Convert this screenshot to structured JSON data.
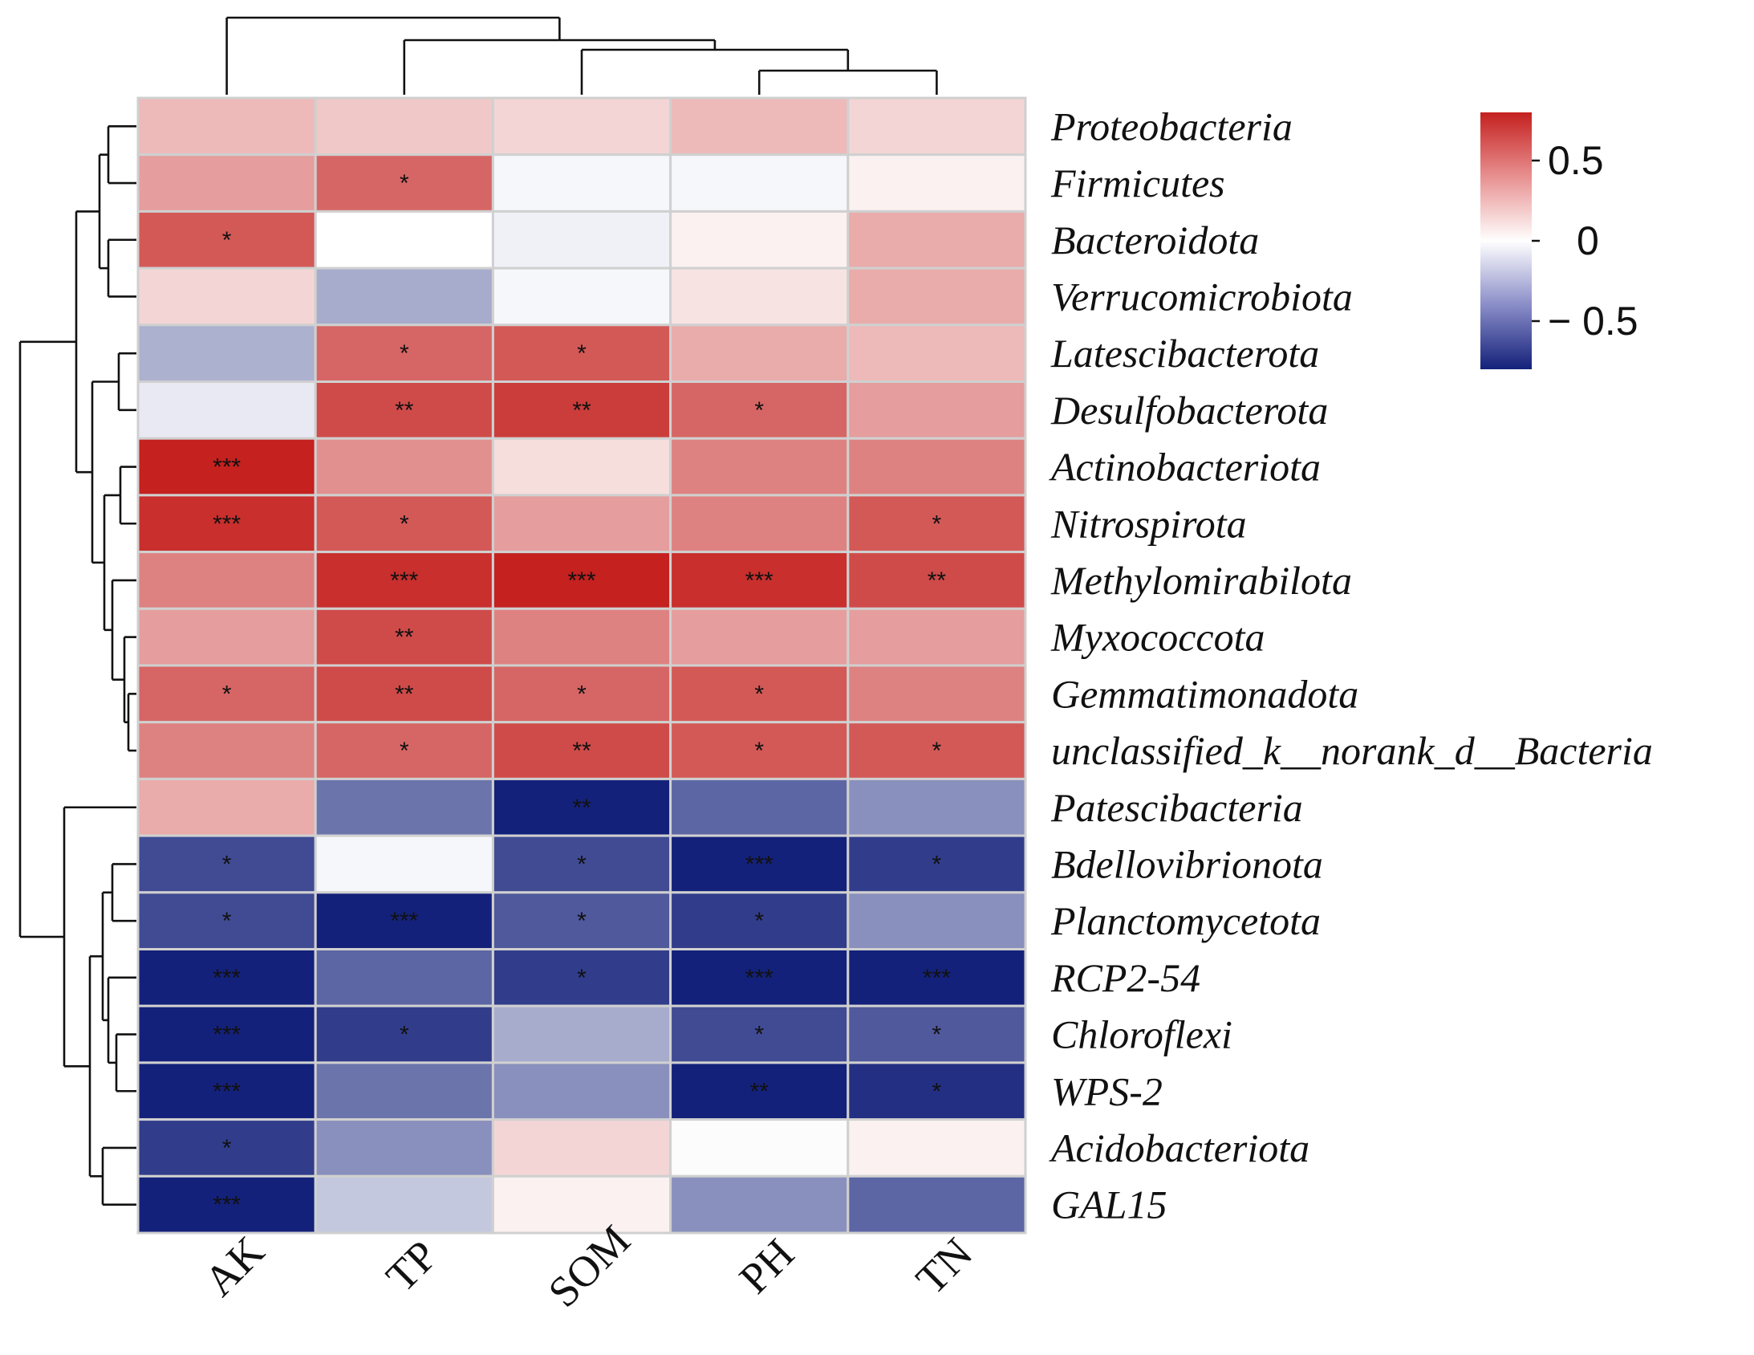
{
  "chart_data": {
    "type": "heatmap",
    "title": "",
    "columns": [
      "AK",
      "TP",
      "SOM",
      "PH",
      "TN"
    ],
    "rows": [
      "Proteobacteria",
      "Firmicutes",
      "Bacteroidota",
      "Verrucomicrobiota",
      "Latescibacterota",
      "Desulfobacterota",
      "Actinobacteriota",
      "Nitrospirota",
      "Methylomirabilota",
      "Myxococcota",
      "Gemmatimonadota",
      "unclassified_k__norank_d__Bacteria",
      "Patescibacteria",
      "Bdellovibrionota",
      "Planctomycetota",
      "RCP2-54",
      "Chloroflexi",
      "WPS-2",
      "Acidobacteriota",
      "GAL15"
    ],
    "values": [
      [
        0.25,
        0.2,
        0.15,
        0.25,
        0.15
      ],
      [
        0.35,
        0.55,
        -0.03,
        -0.03,
        0.05
      ],
      [
        0.6,
        0.0,
        -0.05,
        0.05,
        0.3
      ],
      [
        0.15,
        -0.3,
        -0.03,
        0.1,
        0.3
      ],
      [
        -0.28,
        0.55,
        0.6,
        0.3,
        0.25
      ],
      [
        -0.08,
        0.65,
        0.7,
        0.55,
        0.35
      ],
      [
        0.85,
        0.4,
        0.12,
        0.45,
        0.45
      ],
      [
        0.75,
        0.6,
        0.35,
        0.45,
        0.6
      ],
      [
        0.45,
        0.75,
        0.85,
        0.75,
        0.65
      ],
      [
        0.35,
        0.65,
        0.45,
        0.35,
        0.35
      ],
      [
        0.55,
        0.65,
        0.55,
        0.6,
        0.45
      ],
      [
        0.45,
        0.55,
        0.65,
        0.6,
        0.6
      ],
      [
        0.3,
        -0.5,
        -0.8,
        -0.55,
        -0.4
      ],
      [
        -0.65,
        -0.03,
        -0.65,
        -0.9,
        -0.7
      ],
      [
        -0.65,
        -0.9,
        -0.6,
        -0.7,
        -0.4
      ],
      [
        -0.95,
        -0.55,
        -0.7,
        -1.0,
        -0.95
      ],
      [
        -0.9,
        -0.7,
        -0.3,
        -0.65,
        -0.6
      ],
      [
        -0.95,
        -0.5,
        -0.4,
        -0.85,
        -0.75
      ],
      [
        -0.7,
        -0.4,
        0.15,
        -0.01,
        0.05
      ],
      [
        -0.95,
        -0.2,
        0.05,
        -0.4,
        -0.55
      ]
    ],
    "significance": [
      [
        "",
        "",
        "",
        "",
        ""
      ],
      [
        "",
        "*",
        "",
        "",
        ""
      ],
      [
        "*",
        "",
        "",
        "",
        ""
      ],
      [
        "",
        "",
        "",
        "",
        ""
      ],
      [
        "",
        "*",
        "*",
        "",
        ""
      ],
      [
        "",
        "**",
        "**",
        "*",
        ""
      ],
      [
        "***",
        "",
        "",
        "",
        ""
      ],
      [
        "***",
        "*",
        "",
        "",
        "*"
      ],
      [
        "",
        "***",
        "***",
        "***",
        "**"
      ],
      [
        "",
        "**",
        "",
        "",
        ""
      ],
      [
        "*",
        "**",
        "*",
        "*",
        ""
      ],
      [
        "",
        "*",
        "**",
        "*",
        "*"
      ],
      [
        "",
        "",
        "**",
        "",
        ""
      ],
      [
        "*",
        "",
        "*",
        "***",
        "*"
      ],
      [
        "*",
        "***",
        "*",
        "*",
        ""
      ],
      [
        "***",
        "",
        "*",
        "***",
        "***"
      ],
      [
        "***",
        "*",
        "",
        "*",
        "*"
      ],
      [
        "***",
        "",
        "",
        "**",
        "*"
      ],
      [
        "*",
        "",
        "",
        "",
        ""
      ],
      [
        "***",
        "",
        "",
        "",
        ""
      ]
    ],
    "colorbar": {
      "range": [
        -0.8,
        0.8
      ],
      "ticks": [
        0.5,
        0,
        -0.5
      ],
      "tick_labels": [
        "0.5",
        "0",
        "− 0.5"
      ],
      "colors": {
        "low": "#14217a",
        "mid": "#ffffff",
        "high": "#c4211f"
      }
    }
  }
}
